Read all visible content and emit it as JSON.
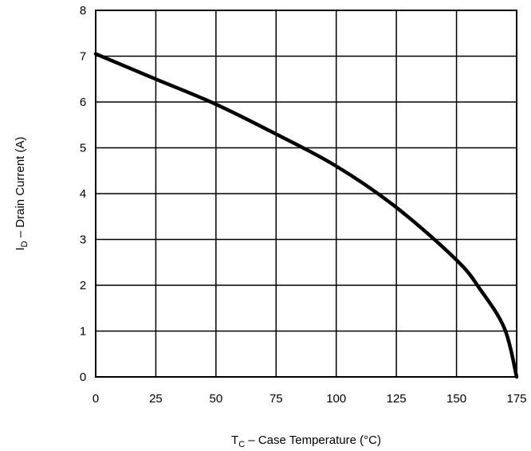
{
  "chart_data": {
    "type": "line",
    "title": "",
    "xlabel": {
      "main": "T",
      "sub": "C",
      "rest": " – Case Temperature (°C)"
    },
    "ylabel": {
      "main": "I",
      "sub": "D",
      "rest": " – Drain Current (A)"
    },
    "xlim": [
      0,
      175
    ],
    "ylim": [
      0,
      8
    ],
    "xticks": [
      0,
      25,
      50,
      75,
      100,
      125,
      150,
      175
    ],
    "yticks": [
      0,
      1,
      2,
      3,
      4,
      5,
      6,
      7,
      8
    ],
    "grid": true,
    "series": [
      {
        "color": "#000000",
        "x": [
          0,
          25,
          50,
          75,
          100,
          125,
          150,
          160,
          170,
          175
        ],
        "y": [
          7.05,
          6.5,
          5.95,
          5.3,
          4.6,
          3.7,
          2.55,
          1.9,
          1.05,
          0
        ]
      }
    ]
  }
}
